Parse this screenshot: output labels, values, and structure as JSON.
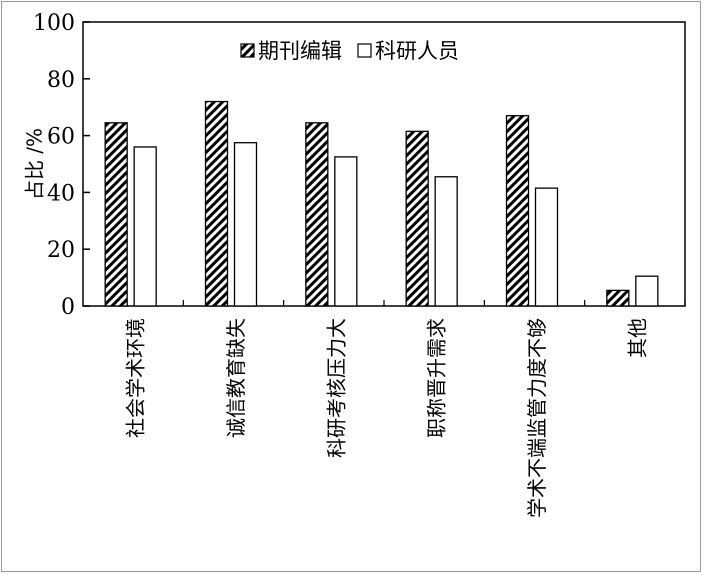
{
  "chart_data": {
    "type": "bar",
    "ylabel": "占比 /%",
    "ylim": [
      0,
      100
    ],
    "yticks": [
      "0",
      "20",
      "40",
      "60",
      "80",
      "100"
    ],
    "categories": [
      "社会学术环境",
      "诚信教育缺失",
      "科研考核压力大",
      "职称晋升需求",
      "学术不端监管力度不够",
      "其他"
    ],
    "series": [
      {
        "name": "期刊编辑",
        "values": [
          64.5,
          72,
          64.5,
          61.5,
          67,
          5.5
        ],
        "pattern": "hatched"
      },
      {
        "name": "科研人员",
        "values": [
          56,
          57.5,
          52.5,
          45.5,
          41.5,
          10.5
        ],
        "pattern": "white"
      }
    ],
    "legend_position": "top-center",
    "grid": false
  },
  "colors": {
    "stroke": "#000000",
    "fill_white": "#ffffff",
    "frame": "#9a9a9a"
  }
}
